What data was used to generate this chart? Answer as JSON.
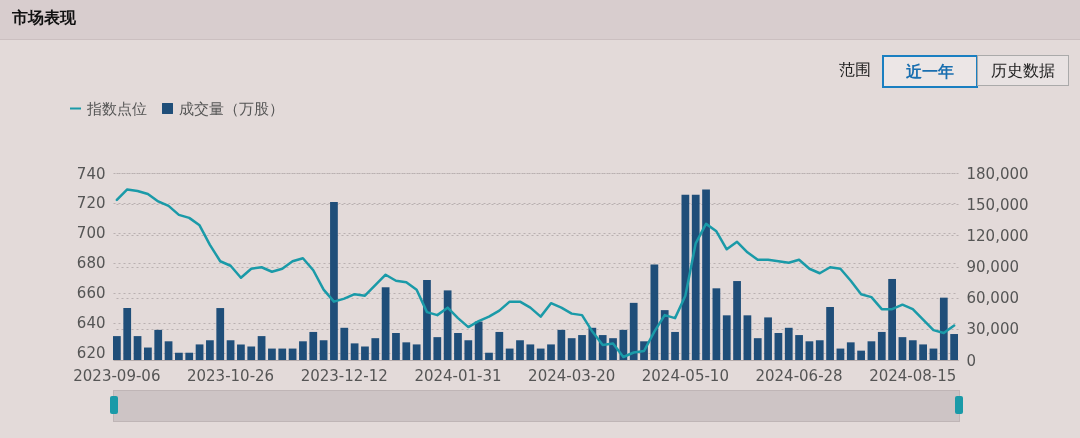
{
  "chart_data": {
    "type": "bar",
    "title": "市场表现",
    "annotations": [
      "范围",
      "近一年",
      "历史数据"
    ],
    "categories": [
      "2023-09-06",
      null,
      null,
      null,
      null,
      null,
      null,
      null,
      null,
      null,
      null,
      "2023-10-26",
      null,
      null,
      null,
      null,
      null,
      null,
      null,
      null,
      null,
      null,
      "2023-12-12",
      null,
      null,
      null,
      null,
      null,
      null,
      null,
      null,
      null,
      null,
      "2024-01-31",
      null,
      null,
      null,
      null,
      null,
      null,
      null,
      null,
      null,
      null,
      "2024-03-20",
      null,
      null,
      null,
      null,
      null,
      null,
      null,
      null,
      null,
      null,
      "2024-05-10",
      null,
      null,
      null,
      null,
      null,
      null,
      null,
      null,
      null,
      null,
      "2024-06-28",
      null,
      null,
      null,
      null,
      null,
      null,
      null,
      null,
      null,
      null,
      "2024-08-15",
      null,
      null,
      null,
      null
    ],
    "series": [
      {
        "name": "指数点位",
        "type": "line",
        "color": "#1a9aa8",
        "values": [
          722,
          729,
          728,
          726,
          721,
          718,
          712,
          710,
          705,
          692,
          681,
          678,
          670,
          676,
          677,
          674,
          676,
          681,
          683,
          675,
          662,
          654,
          656,
          659,
          658,
          665,
          672,
          668,
          667,
          662,
          647,
          645,
          650,
          643,
          637,
          641,
          644,
          648,
          654,
          654,
          650,
          644,
          653,
          650,
          646,
          645,
          634,
          625,
          626,
          617,
          620,
          621,
          634,
          645,
          643,
          658,
          693,
          706,
          701,
          689,
          694,
          687,
          682,
          682,
          681,
          680,
          682,
          676,
          673,
          677,
          676,
          668,
          659,
          657,
          649,
          649,
          652,
          649,
          642,
          635,
          633,
          638
        ]
      },
      {
        "name": "成交量（万股）",
        "axis": "y2",
        "color": "#1f4e79",
        "values": [
          23000,
          50000,
          23000,
          12000,
          29000,
          18000,
          7000,
          7000,
          15000,
          19000,
          50000,
          19000,
          15000,
          13000,
          23000,
          11000,
          11000,
          11000,
          18000,
          27000,
          19000,
          152000,
          31000,
          16000,
          13000,
          21000,
          70000,
          26000,
          17000,
          15000,
          77000,
          22000,
          67000,
          26000,
          19000,
          37000,
          7000,
          27000,
          11000,
          19000,
          15000,
          11000,
          15000,
          29000,
          21000,
          24000,
          31000,
          24000,
          21000,
          29000,
          55000,
          18000,
          92000,
          48000,
          27000,
          159000,
          159000,
          164000,
          69000,
          43000,
          76000,
          43000,
          21000,
          41000,
          26000,
          31000,
          24000,
          18000,
          19000,
          51000,
          11000,
          17000,
          9000,
          18000,
          27000,
          78000,
          22000,
          19000,
          15000,
          11000,
          60000,
          25000
        ]
      }
    ],
    "ylim": [
      615,
      740
    ],
    "yticks": [
      620,
      640,
      660,
      680,
      700,
      720,
      740
    ],
    "y2lim": [
      0,
      180000
    ],
    "y2ticks": [
      0,
      {
        "value": 30000,
        "label": "30,000"
      },
      {
        "value": 60000,
        "label": "60,000"
      },
      {
        "value": 90000,
        "label": "90,000"
      },
      {
        "value": 120000,
        "label": "120,000"
      },
      {
        "value": 150000,
        "label": "150,000"
      },
      {
        "value": 180000,
        "label": "180,000"
      }
    ],
    "grid": true,
    "legend": "top left"
  }
}
